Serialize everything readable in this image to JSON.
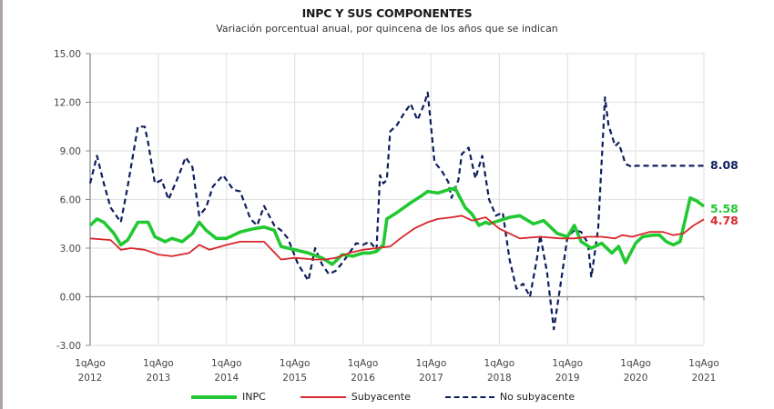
{
  "header": {
    "title": "INPC Y SUS COMPONENTES",
    "subtitle": "Variación porcentual anual, por quincena de los años que se indican"
  },
  "legend": {
    "items": [
      {
        "label": "INPC",
        "style": "solid-green"
      },
      {
        "label": "Subyacente",
        "style": "solid-red"
      },
      {
        "label": "No subyacente",
        "style": "dashed-blue"
      }
    ]
  },
  "end_labels": {
    "no_subyacente": "8.08",
    "inpc": "5.58",
    "subyacente": "4.78"
  },
  "colors": {
    "inpc": "#22c832",
    "subyacente": "#d9262b",
    "no_subyacente": "#0d1f5c",
    "grid": "#e3e3e3",
    "axis": "#8a8a8a"
  },
  "chart_data": {
    "type": "line",
    "title": "INPC Y SUS COMPONENTES",
    "subtitle": "Variación porcentual anual, por quincena de los años que se indican",
    "xlabel": "",
    "ylabel": "",
    "ylim": [
      -3,
      15
    ],
    "yticks": [
      "15.00",
      "12.00",
      "9.00",
      "6.00",
      "3.00",
      "0.00",
      "-3.00"
    ],
    "xticks": [
      [
        "1qAgo",
        "2012"
      ],
      [
        "1qAgo",
        "2013"
      ],
      [
        "1qAgo",
        "2014"
      ],
      [
        "1qAgo",
        "2015"
      ],
      [
        "1qAgo",
        "2016"
      ],
      [
        "1qAgo",
        "2017"
      ],
      [
        "1qAgo",
        "2018"
      ],
      [
        "1qAgo",
        "2019"
      ],
      [
        "1qAgo",
        "2020"
      ],
      [
        "1qAgo",
        "2021"
      ]
    ],
    "xlim": [
      2012.0,
      2021.0
    ],
    "grid": true,
    "legend_position": "bottom",
    "series": [
      {
        "name": "INPC",
        "x": [
          2012.0,
          2012.1,
          2012.2,
          2012.35,
          2012.45,
          2012.55,
          2012.7,
          2012.85,
          2012.95,
          2013.1,
          2013.2,
          2013.35,
          2013.5,
          2013.6,
          2013.7,
          2013.85,
          2014.0,
          2014.2,
          2014.4,
          2014.55,
          2014.7,
          2014.8,
          2015.0,
          2015.2,
          2015.4,
          2015.55,
          2015.7,
          2015.85,
          2016.0,
          2016.1,
          2016.2,
          2016.3,
          2016.35,
          2016.5,
          2016.7,
          2016.85,
          2016.95,
          2017.1,
          2017.25,
          2017.35,
          2017.5,
          2017.6,
          2017.7,
          2017.8,
          2017.85,
          2018.0,
          2018.15,
          2018.3,
          2018.5,
          2018.65,
          2018.75,
          2018.85,
          2019.0,
          2019.1,
          2019.2,
          2019.35,
          2019.5,
          2019.65,
          2019.75,
          2019.85,
          2020.0,
          2020.1,
          2020.25,
          2020.35,
          2020.45,
          2020.55,
          2020.65,
          2020.8,
          2020.9,
          2021.0
        ],
        "y": [
          4.4,
          4.8,
          4.6,
          3.9,
          3.2,
          3.5,
          4.6,
          4.6,
          3.7,
          3.4,
          3.6,
          3.4,
          3.9,
          4.6,
          4.1,
          3.6,
          3.6,
          4.0,
          4.2,
          4.3,
          4.1,
          3.1,
          2.9,
          2.7,
          2.4,
          2.0,
          2.6,
          2.5,
          2.7,
          2.7,
          2.8,
          3.2,
          4.8,
          5.2,
          5.8,
          6.2,
          6.5,
          6.4,
          6.6,
          6.7,
          5.5,
          5.1,
          4.4,
          4.6,
          4.5,
          4.7,
          4.9,
          5.0,
          4.5,
          4.7,
          4.3,
          3.9,
          3.7,
          4.4,
          3.4,
          3.0,
          3.3,
          2.7,
          3.1,
          2.1,
          3.3,
          3.7,
          3.8,
          3.8,
          3.4,
          3.2,
          3.4,
          6.1,
          5.9,
          5.58
        ]
      },
      {
        "name": "Subyacente",
        "x": [
          2012.0,
          2012.3,
          2012.45,
          2012.6,
          2012.8,
          2013.0,
          2013.2,
          2013.45,
          2013.6,
          2013.75,
          2014.0,
          2014.2,
          2014.45,
          2014.55,
          2014.8,
          2015.0,
          2015.3,
          2015.45,
          2015.6,
          2015.8,
          2016.0,
          2016.2,
          2016.4,
          2016.55,
          2016.75,
          2016.95,
          2017.1,
          2017.3,
          2017.45,
          2017.6,
          2017.8,
          2018.0,
          2018.3,
          2018.6,
          2018.9,
          2019.1,
          2019.3,
          2019.5,
          2019.7,
          2019.8,
          2019.95,
          2020.2,
          2020.4,
          2020.55,
          2020.7,
          2020.85,
          2021.0
        ],
        "y": [
          3.6,
          3.5,
          2.9,
          3.0,
          2.9,
          2.6,
          2.5,
          2.7,
          3.2,
          2.9,
          3.2,
          3.4,
          3.4,
          3.4,
          2.3,
          2.4,
          2.3,
          2.3,
          2.4,
          2.7,
          2.9,
          3.0,
          3.1,
          3.6,
          4.2,
          4.6,
          4.8,
          4.9,
          5.0,
          4.7,
          4.9,
          4.2,
          3.6,
          3.7,
          3.6,
          3.6,
          3.7,
          3.7,
          3.6,
          3.8,
          3.7,
          4.0,
          4.0,
          3.8,
          3.9,
          4.4,
          4.78
        ]
      },
      {
        "name": "No subyacente",
        "x": [
          2012.0,
          2012.1,
          2012.2,
          2012.3,
          2012.45,
          2012.55,
          2012.7,
          2012.8,
          2012.85,
          2012.95,
          2013.05,
          2013.15,
          2013.3,
          2013.4,
          2013.5,
          2013.6,
          2013.7,
          2013.8,
          2013.95,
          2014.1,
          2014.2,
          2014.35,
          2014.45,
          2014.55,
          2014.7,
          2014.8,
          2014.9,
          2015.05,
          2015.2,
          2015.3,
          2015.4,
          2015.5,
          2015.6,
          2015.7,
          2015.8,
          2015.9,
          2016.0,
          2016.1,
          2016.2,
          2016.25,
          2016.3,
          2016.35,
          2016.4,
          2016.5,
          2016.6,
          2016.7,
          2016.8,
          2016.9,
          2016.95,
          2017.05,
          2017.15,
          2017.25,
          2017.3,
          2017.4,
          2017.45,
          2017.55,
          2017.65,
          2017.75,
          2017.85,
          2017.95,
          2018.05,
          2018.15,
          2018.25,
          2018.35,
          2018.45,
          2018.55,
          2018.6,
          2018.7,
          2018.8,
          2018.9,
          2019.0,
          2019.1,
          2019.2,
          2019.3,
          2019.35,
          2019.45,
          2019.55,
          2019.6,
          2019.7,
          2019.75,
          2019.85,
          2019.95,
          2020.0,
          2020.1,
          2020.15,
          2020.2,
          2020.3,
          2020.4,
          2020.5,
          2020.55,
          2020.65,
          2020.75,
          2020.85,
          2020.9,
          2021.0
        ],
        "y": [
          7.0,
          8.7,
          7.0,
          5.5,
          4.6,
          6.8,
          10.5,
          10.5,
          9.5,
          7.0,
          7.2,
          6.0,
          7.5,
          8.6,
          8.0,
          5.0,
          5.5,
          6.8,
          7.5,
          6.6,
          6.5,
          4.8,
          4.4,
          5.6,
          4.4,
          4.1,
          3.6,
          2.0,
          1.0,
          3.0,
          2.0,
          1.4,
          1.6,
          2.1,
          2.7,
          3.3,
          3.2,
          3.4,
          2.9,
          7.5,
          7.0,
          7.2,
          10.2,
          10.6,
          11.3,
          11.9,
          10.9,
          11.9,
          12.6,
          8.3,
          7.8,
          7.1,
          6.1,
          7.2,
          8.8,
          9.2,
          7.3,
          8.7,
          6.0,
          5.0,
          5.2,
          2.3,
          0.5,
          0.8,
          0.0,
          2.3,
          3.8,
          1.5,
          -2.0,
          0.8,
          3.7,
          4.1,
          4.0,
          3.3,
          1.2,
          4.2,
          12.3,
          10.6,
          9.3,
          9.5,
          8.2,
          8.0,
          8.08,
          8.08,
          8.08,
          8.08,
          8.08,
          8.08,
          8.08,
          8.08,
          8.08,
          8.08,
          8.08,
          8.08,
          8.08
        ]
      }
    ]
  }
}
